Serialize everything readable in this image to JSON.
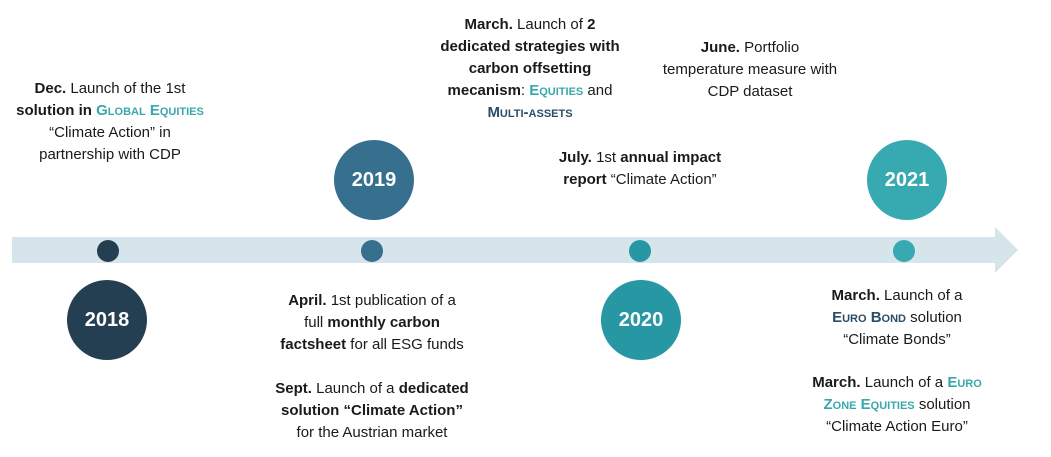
{
  "colors": {
    "arrow": "#d6e5ec",
    "y2018": "#253f52",
    "y2019": "#376f8f",
    "y2020": "#2697a3",
    "y2021": "#36aab0",
    "accent_teal": "#3aa8ab",
    "accent_navy": "#2b4d66"
  },
  "years": {
    "y2018": "2018",
    "y2019": "2019",
    "y2020": "2020",
    "y2021": "2021"
  },
  "events": {
    "dec2018": {
      "month": "Dec.",
      "t1": " Launch of the 1st",
      "t2": "solution in ",
      "highlight": "Global Equities",
      "t3": "“Climate Action” in",
      "t4": "partnership with CDP"
    },
    "apr2019": {
      "month": "April.",
      "t1": " 1st publication of a",
      "t2": "full ",
      "bold": "monthly carbon",
      "bold2": "factsheet",
      "t3": " for all ESG funds"
    },
    "sep2019": {
      "month": "Sept.",
      "t1": " Launch of a ",
      "bold": "dedicated",
      "bold2": "solution “Climate Action”",
      "t2": "for the Austrian market"
    },
    "mar2020": {
      "month": "March.",
      "t1": " Launch of ",
      "bold": "2",
      "bold2": "dedicated strategies with",
      "bold3": "carbon offsetting",
      "bold4": "mecanism",
      "t2": ":  ",
      "highlight1": "Equities",
      "t3": " and",
      "highlight2": "Multi-assets"
    },
    "jun2020": {
      "month": "June.",
      "t1": " Portfolio",
      "t2": "temperature measure with",
      "t3": "CDP dataset"
    },
    "jul2020": {
      "month": "July.",
      "t1": " 1st ",
      "bold": "annual impact",
      "bold2": "report",
      "t2": " “Climate Action”"
    },
    "mar2021a": {
      "month": "March.",
      "t1": " Launch of a",
      "highlight": "Euro Bond",
      "t2": " solution",
      "t3": "“Climate Bonds”"
    },
    "mar2021b": {
      "month": "March.",
      "t1": " Launch of a ",
      "highlight1": "Euro",
      "highlight2": "Zone Equities",
      "t2": " solution",
      "t3": "“Climate Action Euro”"
    }
  }
}
